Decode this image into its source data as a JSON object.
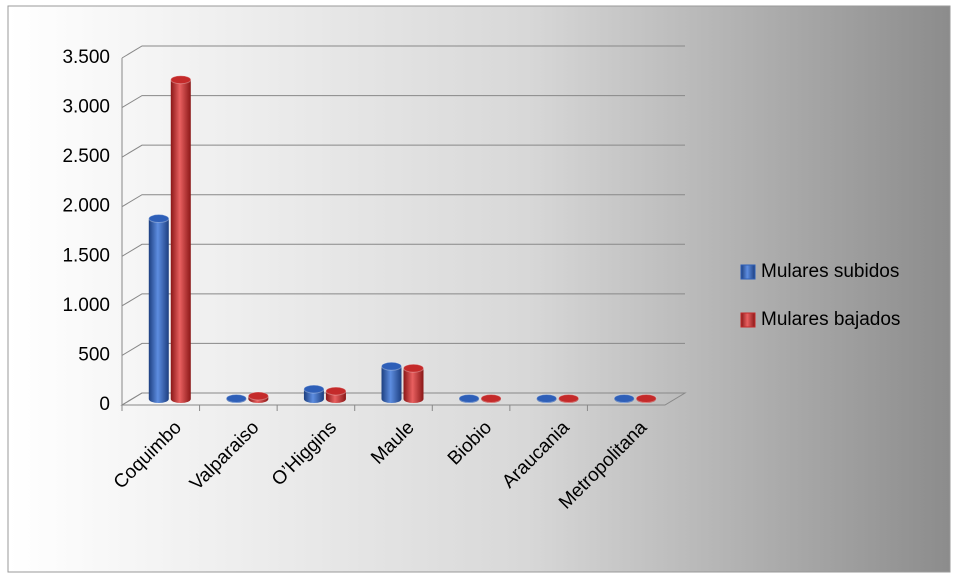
{
  "chart_data": {
    "type": "bar",
    "categories": [
      "Coquimbo",
      "Valparaiso",
      "O’Higgins",
      "Maule",
      "Biobio",
      "Araucania",
      "Metropolitana"
    ],
    "series": [
      {
        "name": "Mulares subidos",
        "color": "#2e5fb8",
        "values": [
          1820,
          5,
          100,
          330,
          5,
          5,
          5
        ]
      },
      {
        "name": "Mulares bajados",
        "color": "#c42a2a",
        "values": [
          3220,
          30,
          80,
          310,
          5,
          5,
          5
        ]
      }
    ],
    "ylim": [
      0,
      3500
    ],
    "yticks": [
      0,
      500,
      {
        "value": 1000,
        "label": "1.000"
      },
      {
        "value": 1500,
        "label": "1.500"
      },
      {
        "value": 2000,
        "label": "2.000"
      },
      {
        "value": 2500,
        "label": "2.500"
      },
      {
        "value": 3000,
        "label": "3.000"
      },
      {
        "value": 3500,
        "label": "3.500"
      }
    ],
    "grid": true,
    "legend": "right"
  }
}
